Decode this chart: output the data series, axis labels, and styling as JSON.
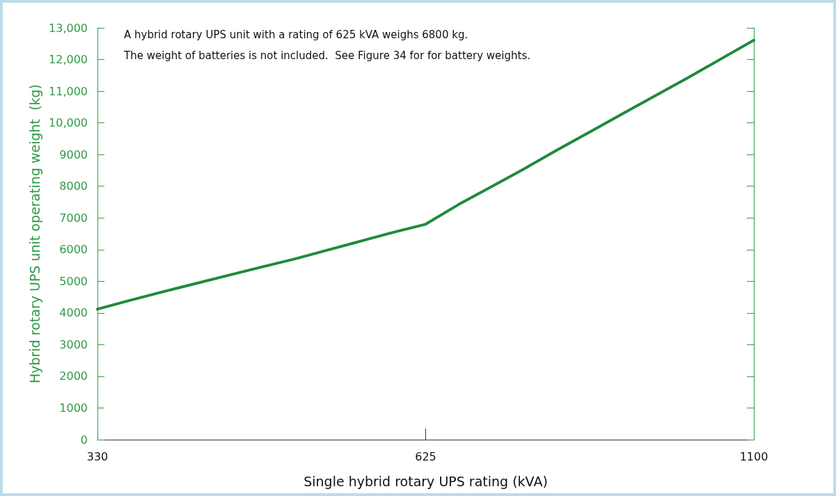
{
  "chart_data": {
    "type": "line",
    "xlabel": "Single hybrid rotary UPS rating (kVA)",
    "ylabel": "Hybrid rotary UPS unit operating weight  (kg)",
    "annotations": [
      "A hybrid rotary UPS unit with a rating of 625 kVA weighs 6800 kg.",
      "The weight of batteries is not included.  See Figure 34 for for battery weights."
    ],
    "categories": [
      "330",
      null,
      null,
      null,
      null,
      null,
      null,
      null,
      null,
      null,
      "625",
      null,
      null,
      null,
      null,
      null,
      null,
      null,
      null,
      null,
      "1100"
    ],
    "series": [
      {
        "color": "#1f8a3c",
        "values": [
          4120,
          4400,
          4670,
          4930,
          5190,
          5450,
          5700,
          5980,
          6260,
          6540,
          6800,
          7420,
          7980,
          8550,
          9140,
          9710,
          10290,
          10860,
          11430,
          12020,
          12610
        ]
      }
    ],
    "ylim": [
      0,
      13000
    ],
    "yticks": [
      0,
      1000,
      2000,
      3000,
      4000,
      5000,
      6000,
      7000,
      8000,
      9000,
      {
        "value": 10000,
        "label": "10,000"
      },
      {
        "value": 11000,
        "label": "11,000"
      },
      {
        "value": 12000,
        "label": "12,000"
      },
      {
        "value": 13000,
        "label": "13,000"
      }
    ],
    "grid": false,
    "marker": "none",
    "line_style": "solid"
  }
}
